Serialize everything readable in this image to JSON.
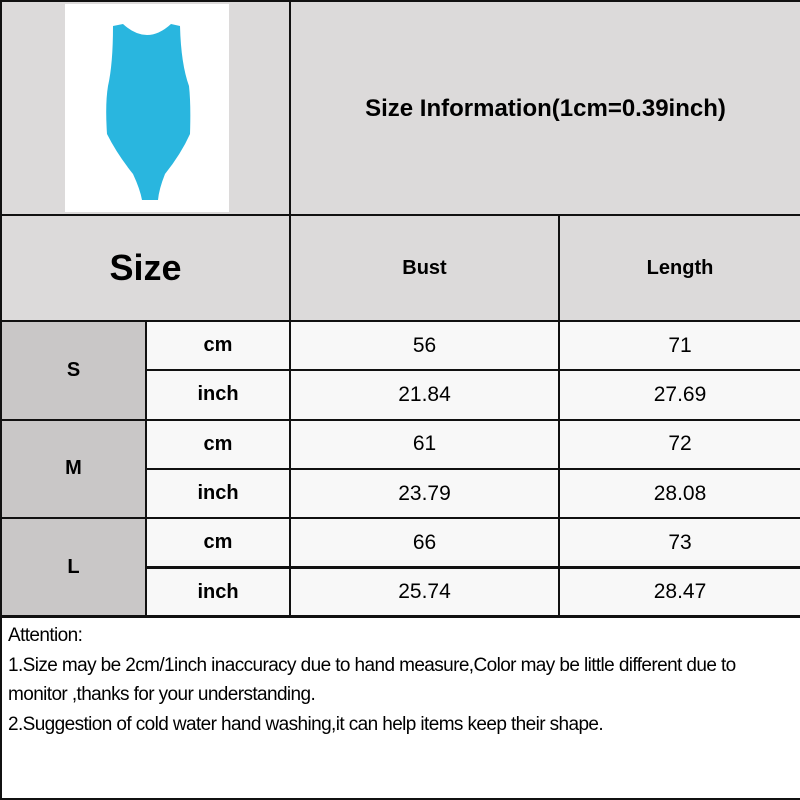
{
  "title": "Size Information(1cm=0.39inch)",
  "product_image": {
    "description_icon": "blue-bodysuit-image",
    "color": "#29b6df"
  },
  "header": {
    "size": "Size",
    "columns": [
      "Bust",
      "Length"
    ]
  },
  "rows": [
    {
      "size": "S",
      "units": [
        {
          "unit": "cm",
          "values": [
            "56",
            "71"
          ]
        },
        {
          "unit": "inch",
          "values": [
            "21.84",
            "27.69"
          ]
        }
      ]
    },
    {
      "size": "M",
      "units": [
        {
          "unit": "cm",
          "values": [
            "61",
            "72"
          ]
        },
        {
          "unit": "inch",
          "values": [
            "23.79",
            "28.08"
          ]
        }
      ]
    },
    {
      "size": "L",
      "units": [
        {
          "unit": "cm",
          "values": [
            "66",
            "73"
          ]
        },
        {
          "unit": "inch",
          "values": [
            "25.74",
            "28.47"
          ]
        }
      ]
    }
  ],
  "notes": [
    "Attention:",
    "1.Size may be 2cm/1inch inaccuracy due to hand measure,Color may be little different due to monitor ,thanks for your understanding.",
    "2.Suggestion of cold water hand washing,it can help items keep their shape."
  ]
}
